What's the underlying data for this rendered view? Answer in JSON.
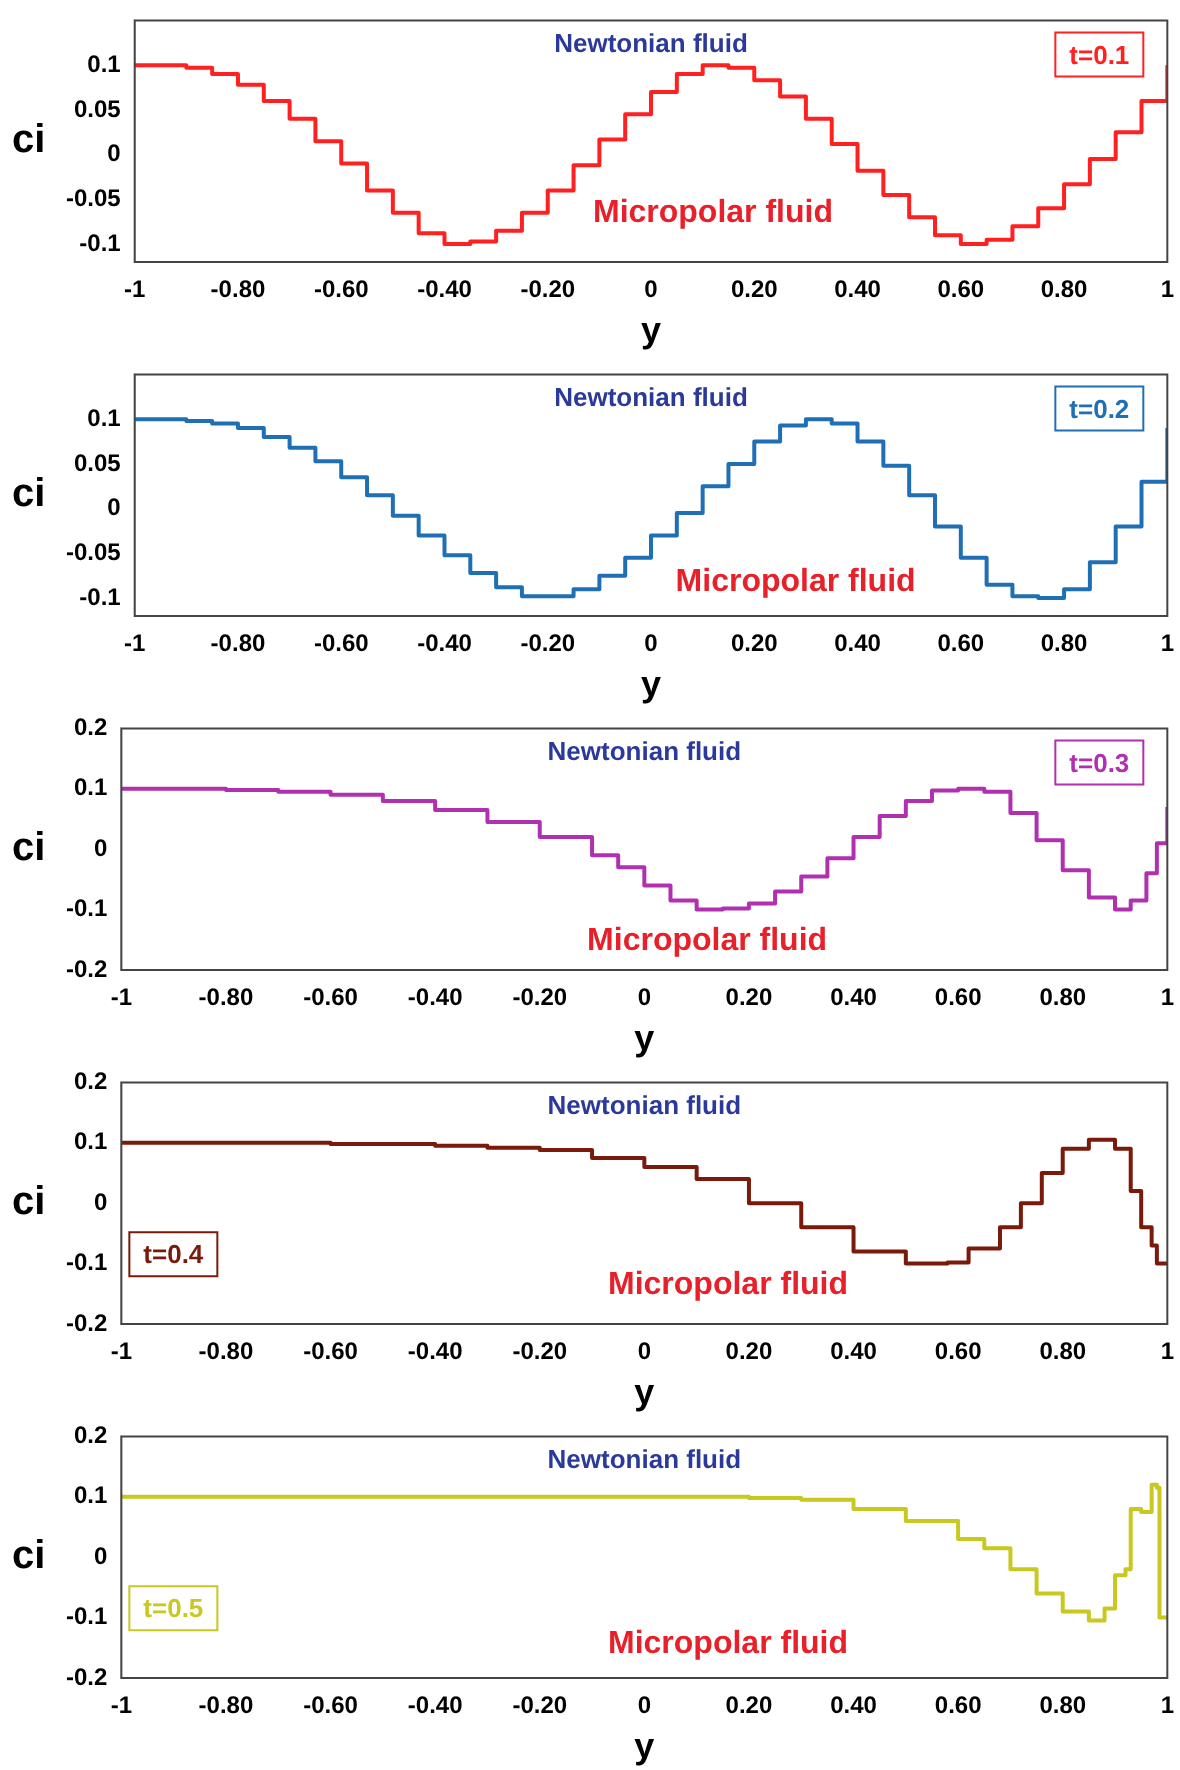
{
  "chart_data": [
    {
      "type": "step",
      "xlabel": "y",
      "ylabel": "ci",
      "legend": "top right",
      "annotations": [
        "Newtonian fluid",
        "Micropolar fluid"
      ],
      "xlim": [
        -1,
        1
      ],
      "ylim": [
        -0.12,
        0.15
      ],
      "xticks": [
        -1,
        {
          "value": -0.8,
          "label": "-0.80"
        },
        {
          "value": -0.6,
          "label": "-0.60"
        },
        {
          "value": -0.4,
          "label": "-0.40"
        },
        {
          "value": -0.2,
          "label": "-0.20"
        },
        0,
        {
          "value": 0.2,
          "label": "0.20"
        },
        {
          "value": 0.4,
          "label": "0.40"
        },
        {
          "value": 0.6,
          "label": "0.60"
        },
        {
          "value": 0.8,
          "label": "0.80"
        },
        1
      ],
      "yticks": [
        -0.1,
        -0.05,
        0,
        0.05,
        0.1
      ],
      "series": [
        {
          "name": "t=0.1",
          "color": "#ff2020",
          "x": [
            -1,
            -0.95,
            -0.9,
            -0.85,
            -0.8,
            -0.75,
            -0.7,
            -0.65,
            -0.6,
            -0.55,
            -0.5,
            -0.45,
            -0.4,
            -0.35,
            -0.3,
            -0.25,
            -0.2,
            -0.15,
            -0.1,
            -0.05,
            0,
            0.05,
            0.1,
            0.15,
            0.2,
            0.25,
            0.3,
            0.35,
            0.4,
            0.45,
            0.5,
            0.55,
            0.6,
            0.65,
            0.7,
            0.75,
            0.8,
            0.85,
            0.9,
            0.95,
            1
          ],
          "values": [
            0.1,
            0.1,
            0.097,
            0.09,
            0.078,
            0.06,
            0.04,
            0.015,
            -0.01,
            -0.04,
            -0.065,
            -0.088,
            -0.1,
            -0.097,
            -0.085,
            -0.065,
            -0.04,
            -0.012,
            0.017,
            0.045,
            0.07,
            0.09,
            0.1,
            0.097,
            0.083,
            0.065,
            0.04,
            0.012,
            -0.018,
            -0.045,
            -0.07,
            -0.09,
            -0.1,
            -0.095,
            -0.08,
            -0.06,
            -0.033,
            -0.005,
            0.025,
            0.06,
            0.1
          ]
        }
      ]
    },
    {
      "type": "step",
      "xlabel": "y",
      "ylabel": "ci",
      "legend": "top right",
      "annotations": [
        "Newtonian fluid",
        "Micropolar fluid"
      ],
      "xlim": [
        -1,
        1
      ],
      "ylim": [
        -0.12,
        0.15
      ],
      "xticks": [
        -1,
        {
          "value": -0.8,
          "label": "-0.80"
        },
        {
          "value": -0.6,
          "label": "-0.60"
        },
        {
          "value": -0.4,
          "label": "-0.40"
        },
        {
          "value": -0.2,
          "label": "-0.20"
        },
        0,
        {
          "value": 0.2,
          "label": "0.20"
        },
        {
          "value": 0.4,
          "label": "0.40"
        },
        {
          "value": 0.6,
          "label": "0.60"
        },
        {
          "value": 0.8,
          "label": "0.80"
        },
        1
      ],
      "yticks": [
        -0.1,
        -0.05,
        0,
        0.05,
        0.1
      ],
      "series": [
        {
          "name": "t=0.2",
          "color": "#1f6fb5",
          "x": [
            -1,
            -0.95,
            -0.9,
            -0.85,
            -0.8,
            -0.75,
            -0.7,
            -0.65,
            -0.6,
            -0.55,
            -0.5,
            -0.45,
            -0.4,
            -0.35,
            -0.3,
            -0.25,
            -0.2,
            -0.15,
            -0.1,
            -0.05,
            0,
            0.05,
            0.1,
            0.15,
            0.2,
            0.25,
            0.3,
            0.35,
            0.4,
            0.45,
            0.5,
            0.55,
            0.6,
            0.65,
            0.7,
            0.75,
            0.8,
            0.85,
            0.9,
            0.95,
            1
          ],
          "values": [
            0.1,
            0.1,
            0.098,
            0.095,
            0.09,
            0.08,
            0.068,
            0.053,
            0.035,
            0.015,
            -0.008,
            -0.03,
            -0.052,
            -0.072,
            -0.088,
            -0.098,
            -0.098,
            -0.09,
            -0.075,
            -0.055,
            -0.03,
            -0.005,
            0.025,
            0.05,
            0.075,
            0.093,
            0.1,
            0.095,
            0.075,
            0.048,
            0.015,
            -0.02,
            -0.055,
            -0.085,
            -0.098,
            -0.1,
            -0.09,
            -0.06,
            -0.02,
            0.03,
            0.09
          ]
        }
      ]
    },
    {
      "type": "step",
      "xlabel": "y",
      "ylabel": "ci",
      "legend": "top right",
      "annotations": [
        "Newtonian fluid",
        "Micropolar fluid"
      ],
      "xlim": [
        -1,
        1
      ],
      "ylim": [
        -0.2,
        0.2
      ],
      "xticks": [
        -1,
        {
          "value": -0.8,
          "label": "-0.80"
        },
        {
          "value": -0.6,
          "label": "-0.60"
        },
        {
          "value": -0.4,
          "label": "-0.40"
        },
        {
          "value": -0.2,
          "label": "-0.20"
        },
        0,
        {
          "value": 0.2,
          "label": "0.20"
        },
        {
          "value": 0.4,
          "label": "0.40"
        },
        {
          "value": 0.6,
          "label": "0.60"
        },
        {
          "value": 0.8,
          "label": "0.80"
        },
        1
      ],
      "yticks": [
        -0.2,
        -0.1,
        0,
        0.1,
        0.2
      ],
      "series": [
        {
          "name": "t=0.3",
          "color": "#b030b0",
          "x": [
            -1,
            -0.9,
            -0.8,
            -0.7,
            -0.6,
            -0.5,
            -0.4,
            -0.3,
            -0.2,
            -0.1,
            -0.05,
            0,
            0.05,
            0.1,
            0.15,
            0.2,
            0.25,
            0.3,
            0.35,
            0.4,
            0.45,
            0.5,
            0.55,
            0.6,
            0.65,
            0.7,
            0.75,
            0.8,
            0.85,
            0.9,
            0.93,
            0.96,
            0.98,
            1
          ],
          "values": [
            0.1,
            0.1,
            0.098,
            0.095,
            0.09,
            0.08,
            0.065,
            0.045,
            0.02,
            -0.01,
            -0.03,
            -0.06,
            -0.085,
            -0.1,
            -0.098,
            -0.09,
            -0.07,
            -0.045,
            -0.015,
            0.02,
            0.055,
            0.08,
            0.097,
            0.1,
            0.095,
            0.06,
            0.015,
            -0.035,
            -0.08,
            -0.1,
            -0.085,
            -0.04,
            0.01,
            0.07
          ]
        }
      ]
    },
    {
      "type": "step",
      "xlabel": "y",
      "ylabel": "ci",
      "legend": "left",
      "annotations": [
        "Newtonian fluid",
        "Micropolar fluid"
      ],
      "xlim": [
        -1,
        1
      ],
      "ylim": [
        -0.2,
        0.2
      ],
      "xticks": [
        -1,
        {
          "value": -0.8,
          "label": "-0.80"
        },
        {
          "value": -0.6,
          "label": "-0.60"
        },
        {
          "value": -0.4,
          "label": "-0.40"
        },
        {
          "value": -0.2,
          "label": "-0.20"
        },
        0,
        {
          "value": 0.2,
          "label": "0.20"
        },
        {
          "value": 0.4,
          "label": "0.40"
        },
        {
          "value": 0.6,
          "label": "0.60"
        },
        {
          "value": 0.8,
          "label": "0.80"
        },
        1
      ],
      "yticks": [
        -0.2,
        -0.1,
        0,
        0.1,
        0.2
      ],
      "series": [
        {
          "name": "t=0.4",
          "color": "#7a1a0a",
          "x": [
            -1,
            -0.8,
            -0.6,
            -0.4,
            -0.3,
            -0.2,
            -0.1,
            0,
            0.1,
            0.2,
            0.3,
            0.4,
            0.5,
            0.55,
            0.58,
            0.62,
            0.68,
            0.72,
            0.76,
            0.8,
            0.85,
            0.9,
            0.93,
            0.95,
            0.97,
            0.98,
            1
          ],
          "values": [
            0.1,
            0.1,
            0.098,
            0.095,
            0.092,
            0.088,
            0.075,
            0.06,
            0.04,
            0,
            -0.04,
            -0.08,
            -0.1,
            -0.1,
            -0.098,
            -0.075,
            -0.04,
            0,
            0.05,
            0.09,
            0.105,
            0.09,
            0.02,
            -0.04,
            -0.07,
            -0.1,
            -0.1
          ]
        }
      ]
    },
    {
      "type": "step",
      "xlabel": "y",
      "ylabel": "ci",
      "legend": "left",
      "annotations": [
        "Newtonian fluid",
        "Micropolar fluid"
      ],
      "xlim": [
        -1,
        1
      ],
      "ylim": [
        -0.2,
        0.2
      ],
      "xticks": [
        -1,
        {
          "value": -0.8,
          "label": "-0.80"
        },
        {
          "value": -0.6,
          "label": "-0.60"
        },
        {
          "value": -0.4,
          "label": "-0.40"
        },
        {
          "value": -0.2,
          "label": "-0.20"
        },
        0,
        {
          "value": 0.2,
          "label": "0.20"
        },
        {
          "value": 0.4,
          "label": "0.40"
        },
        {
          "value": 0.6,
          "label": "0.60"
        },
        {
          "value": 0.8,
          "label": "0.80"
        },
        1
      ],
      "yticks": [
        -0.2,
        -0.1,
        0,
        0.1,
        0.2
      ],
      "series": [
        {
          "name": "t=0.5",
          "color": "#c8c820",
          "x": [
            -1,
            -0.8,
            -0.6,
            -0.4,
            -0.2,
            0,
            0.2,
            0.3,
            0.4,
            0.5,
            0.6,
            0.65,
            0.7,
            0.75,
            0.8,
            0.85,
            0.88,
            0.9,
            0.92,
            0.93,
            0.95,
            0.97,
            0.98,
            0.985,
            1
          ],
          "values": [
            0.1,
            0.1,
            0.1,
            0.1,
            0.1,
            0.1,
            0.098,
            0.095,
            0.08,
            0.06,
            0.03,
            0.015,
            -0.02,
            -0.06,
            -0.09,
            -0.105,
            -0.085,
            -0.03,
            -0.02,
            0.08,
            0.075,
            0.12,
            0.115,
            -0.1,
            -0.1
          ]
        }
      ]
    }
  ]
}
